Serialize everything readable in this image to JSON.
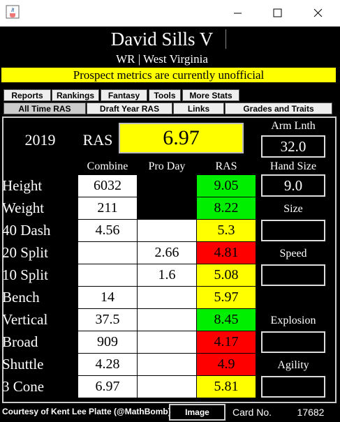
{
  "header": {
    "name": "David Sills V",
    "subtitle": "WR | West Virginia",
    "notice": "Prospect metrics are currently unofficial"
  },
  "tabs": {
    "row1": [
      "Reports",
      "Rankings",
      "Fantasy",
      "Tools",
      "More Stats"
    ],
    "row2": [
      "All Time RAS",
      "Draft Year RAS",
      "Links",
      "Grades and Traits"
    ]
  },
  "summary": {
    "year": "2019",
    "ras_label": "RAS",
    "ras": "6.97",
    "arm_length_label": "Arm Lnth",
    "arm_length": "32.0"
  },
  "table": {
    "columns": [
      "Combine",
      "Pro Day",
      "RAS"
    ],
    "rows": [
      {
        "label": "Height",
        "combine": "6032",
        "pro_day": null,
        "ras": "9.05",
        "color": "#00ee00"
      },
      {
        "label": "Weight",
        "combine": "211",
        "pro_day": null,
        "ras": "8.22",
        "color": "#00ee00"
      },
      {
        "label": "40 Dash",
        "combine": "4.56",
        "pro_day": null,
        "ras": "5.3",
        "color": "#ffff00"
      },
      {
        "label": "20 Split",
        "combine": null,
        "pro_day": "2.66",
        "ras": "4.81",
        "color": "#ff0000"
      },
      {
        "label": "10 Split",
        "combine": null,
        "pro_day": "1.6",
        "ras": "5.08",
        "color": "#ffff00"
      },
      {
        "label": "Bench",
        "combine": "14",
        "pro_day": null,
        "ras": "5.97",
        "color": "#ffff00"
      },
      {
        "label": "Vertical",
        "combine": "37.5",
        "pro_day": null,
        "ras": "8.45",
        "color": "#00ee00"
      },
      {
        "label": "Broad",
        "combine": "909",
        "pro_day": null,
        "ras": "4.17",
        "color": "#ff0000"
      },
      {
        "label": "Shuttle",
        "combine": "4.28",
        "pro_day": null,
        "ras": "4.9",
        "color": "#ff0000"
      },
      {
        "label": "3 Cone",
        "combine": "6.97",
        "pro_day": null,
        "ras": "5.81",
        "color": "#ffff00"
      }
    ]
  },
  "side": {
    "hand_size_label": "Hand Size",
    "hand_size": "9.0",
    "size_label": "Size",
    "speed_label": "Speed",
    "explosion_label": "Explosion",
    "agility_label": "Agility"
  },
  "footer": {
    "credit": "Courtesy of Kent Lee Platte (@MathBomb)",
    "button": "Image",
    "card_label": "Card No.",
    "card_number": "17682"
  }
}
